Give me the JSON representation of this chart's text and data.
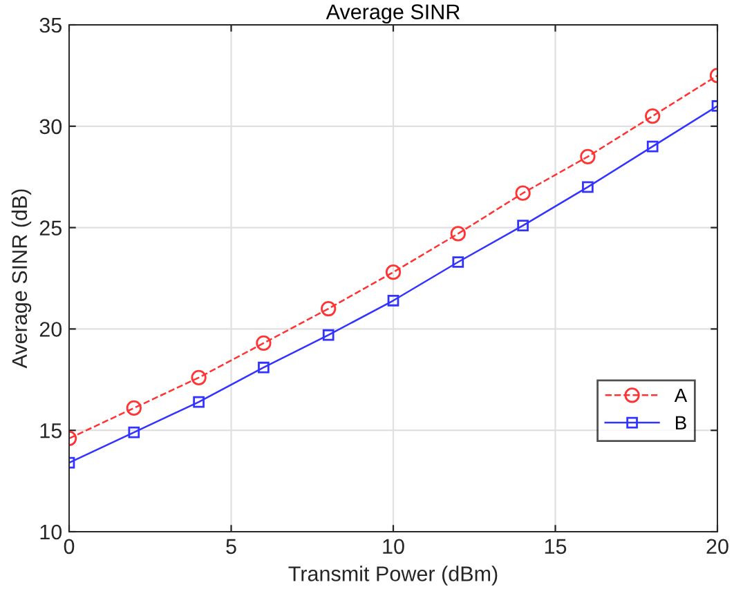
{
  "chart_data": {
    "type": "line",
    "title": "Average SINR",
    "xlabel": "Transmit Power (dBm)",
    "ylabel": "Average SINR (dB)",
    "x": [
      0,
      2,
      4,
      6,
      8,
      10,
      12,
      14,
      16,
      18,
      20
    ],
    "series": [
      {
        "name": "A",
        "color": "#ff3333",
        "marker": "circle",
        "line_style": "dashed",
        "values": [
          14.6,
          16.1,
          17.6,
          19.3,
          21.0,
          22.8,
          24.7,
          26.7,
          28.5,
          30.5,
          32.5
        ]
      },
      {
        "name": "B",
        "color": "#3333ff",
        "marker": "square",
        "line_style": "solid",
        "values": [
          13.4,
          14.9,
          16.4,
          18.1,
          19.7,
          21.4,
          23.3,
          25.1,
          27.0,
          29.0,
          31.0
        ]
      }
    ],
    "xlim": [
      0,
      20
    ],
    "ylim": [
      10,
      35
    ],
    "xticks": [
      0,
      5,
      10,
      15,
      20
    ],
    "yticks": [
      10,
      15,
      20,
      25,
      30,
      35
    ],
    "grid": true,
    "legend": "bottom right"
  }
}
